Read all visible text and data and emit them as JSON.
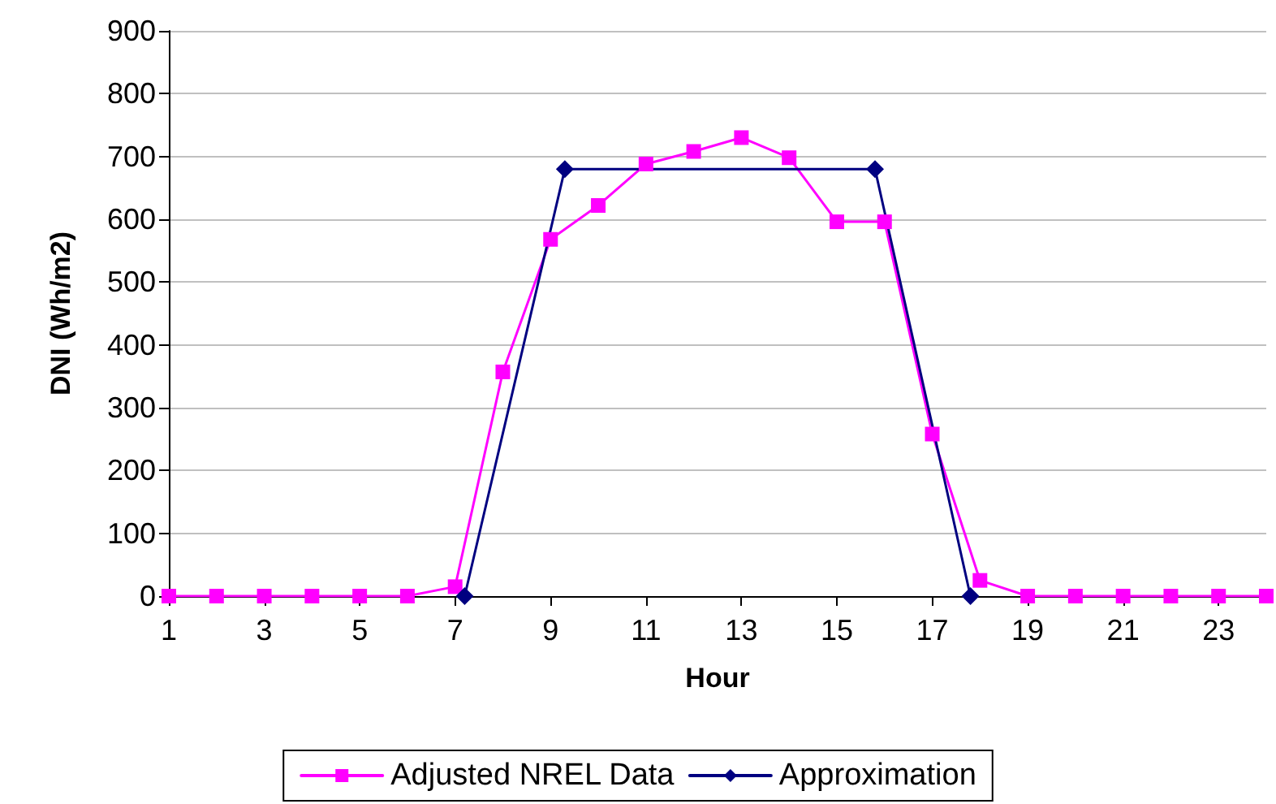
{
  "chart_data": {
    "type": "line",
    "xlabel": "Hour",
    "ylabel": "DNI (Wh/m2)",
    "xlim": [
      1,
      24
    ],
    "xticks": [
      1,
      3,
      5,
      7,
      9,
      11,
      13,
      15,
      17,
      19,
      21,
      23
    ],
    "ylim": [
      0,
      900
    ],
    "yticks": [
      0,
      100,
      200,
      300,
      400,
      500,
      600,
      700,
      800,
      900
    ],
    "grid": "y",
    "legend": "bottom",
    "series": [
      {
        "name": "Adjusted NREL Data",
        "color": "#ff00ff",
        "marker": "square",
        "x": [
          1,
          2,
          3,
          4,
          5,
          6,
          7,
          8,
          9,
          10,
          11,
          12,
          13,
          14,
          15,
          16,
          17,
          18,
          19,
          20,
          21,
          22,
          23,
          24
        ],
        "values": [
          0,
          0,
          0,
          0,
          0,
          0,
          15,
          357,
          568,
          622,
          688,
          708,
          730,
          698,
          596,
          596,
          258,
          25,
          0,
          0,
          0,
          0,
          0,
          0
        ]
      },
      {
        "name": "Approximation",
        "color": "#000080",
        "marker": "diamond",
        "x": [
          7.2,
          9.3,
          15.8,
          17.8
        ],
        "values": [
          0,
          680,
          680,
          0
        ]
      }
    ]
  }
}
